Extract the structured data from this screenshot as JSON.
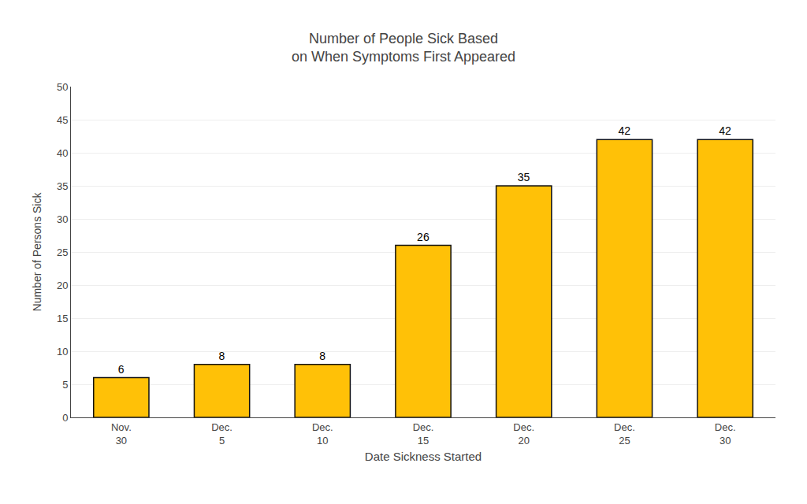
{
  "chart_data": {
    "type": "bar",
    "title": "Number of People Sick Based\non When Symptoms First Appeared",
    "xlabel": "Date Sickness Started",
    "ylabel": "Number of Persons Sick",
    "categories": [
      "Nov.\n30",
      "Dec.\n5",
      "Dec.\n10",
      "Dec.\n15",
      "Dec.\n20",
      "Dec.\n25",
      "Dec.\n30"
    ],
    "values": [
      6,
      8,
      8,
      26,
      35,
      42,
      42
    ],
    "color": "#FFC107",
    "ylim": [
      0,
      50
    ],
    "yticks": [
      0,
      5,
      10,
      15,
      20,
      25,
      30,
      35,
      40,
      45,
      50
    ],
    "grid": true,
    "data_labels": true
  }
}
